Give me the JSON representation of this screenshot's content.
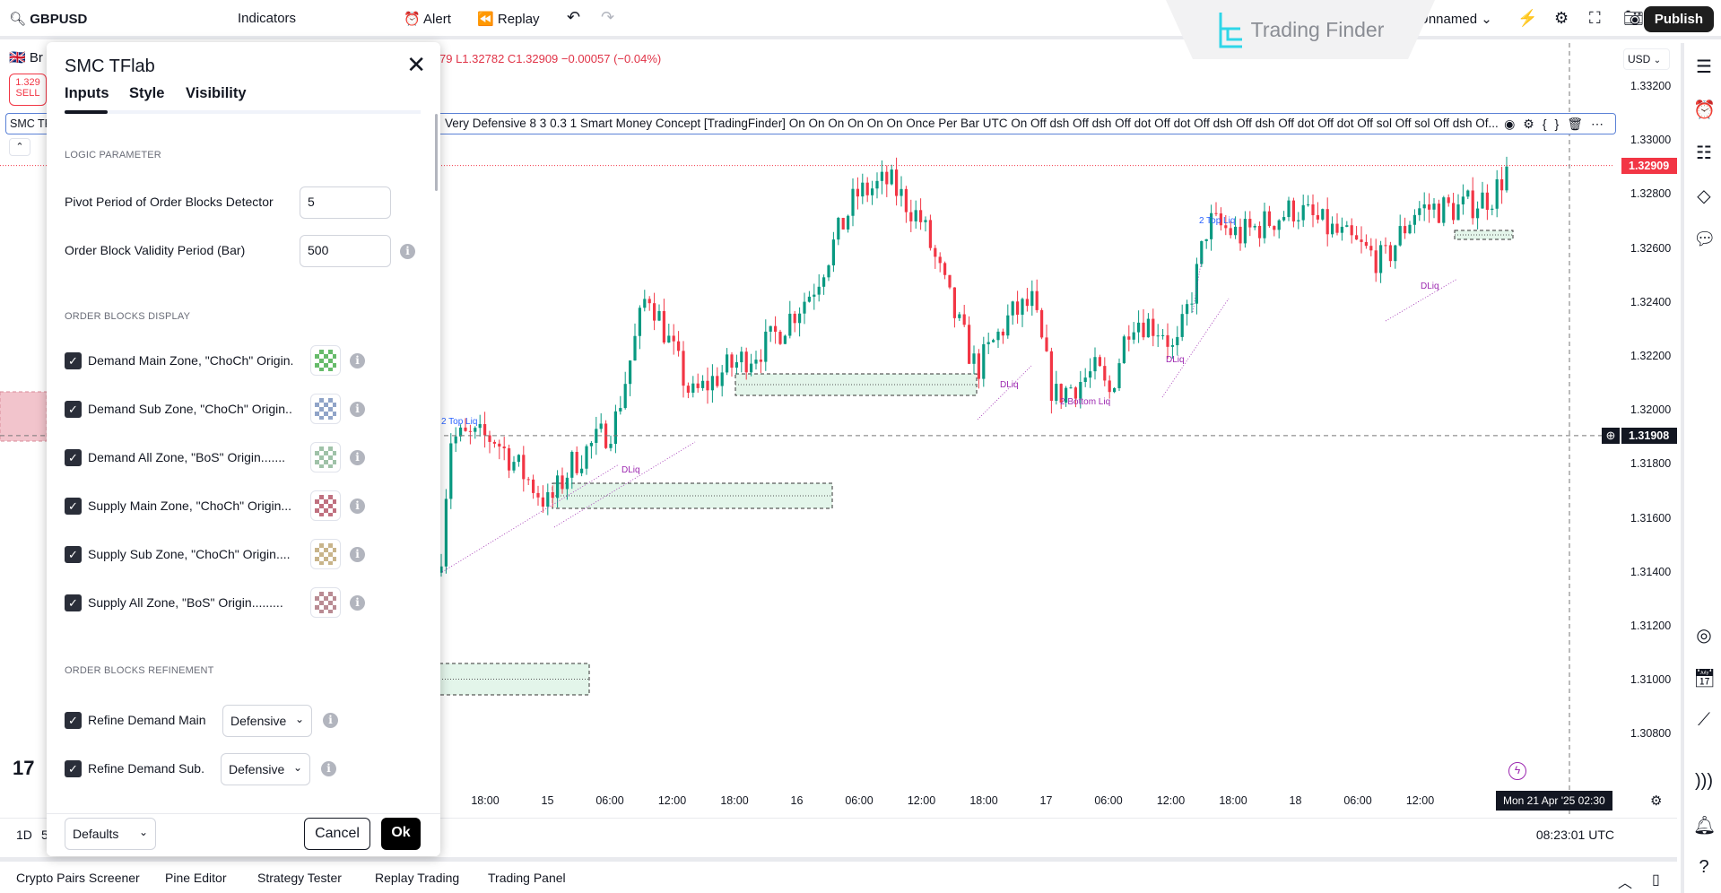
{
  "toolbar": {
    "symbol": "GBPUSD",
    "indicators": "Indicators",
    "alert": "Alert",
    "replay": "Replay",
    "layout_name": "Unnamed",
    "publish": "Publish"
  },
  "watermark": "Trading Finder",
  "chart": {
    "symbol_short": "Br",
    "sell_price": "1.329",
    "sell_label": "SELL",
    "legend_short": "SMC TF",
    "ohlc": "79 L1.32782 C1.32909 −0.00057 (−0.04%)",
    "legend_text": "Very Defensive 8 3 0.3 1 Smart Money Concept [TradingFinder] On On On On On On Once Per Bar UTC On Off dsh Off dsh Off dot Off dot Off dsh Off dsh Off dot Off dot Off sol Off sol Off dsh Of...",
    "currency": "USD",
    "price_ticks": [
      "1.33200",
      "1.33000",
      "1.32800",
      "1.32600",
      "1.32400",
      "1.32200",
      "1.32000",
      "1.31800",
      "1.31600",
      "1.31400",
      "1.31200",
      "1.31000",
      "1.30800"
    ],
    "last_price": "1.32909",
    "crosshair_price": "1.31908",
    "time_ticks": [
      "18:00",
      "15",
      "06:00",
      "12:00",
      "18:00",
      "16",
      "06:00",
      "12:00",
      "18:00",
      "17",
      "06:00",
      "12:00",
      "18:00",
      "18",
      "06:00",
      "12:00"
    ],
    "crosshair_time": "Mon 21 Apr '25  02:30",
    "labels": {
      "top_liq": "2 Top Liq",
      "dliq": "DLiq",
      "bottom_liq": "2 Bottom Liq"
    },
    "colors": {
      "up": "#089981",
      "down": "#f23645",
      "last_price_bg": "#f23645",
      "demand_zone": "#e3f5ea",
      "supply_zone": "#f2c4cc",
      "liq_label": "#9c27b0",
      "top_liq_label": "#2962ff"
    }
  },
  "status": {
    "interval": "1D",
    "interval2": "5",
    "clock": "08:23:01 UTC"
  },
  "bottom_tabs": [
    "Crypto Pairs Screener",
    "Pine Editor",
    "Strategy Tester",
    "Replay Trading",
    "Trading Panel"
  ],
  "dialog": {
    "title": "SMC TFlab",
    "tabs": [
      "Inputs",
      "Style",
      "Visibility"
    ],
    "sections": {
      "logic": "LOGIC PARAMETER",
      "display": "ORDER BLOCKS DISPLAY",
      "refinement": "ORDER BLOCKS REFINEMENT"
    },
    "inputs": [
      {
        "label": "Pivot Period of Order Blocks Detector",
        "value": "5"
      },
      {
        "label": "Order Block Validity Period (Bar)",
        "value": "500"
      }
    ],
    "zones": [
      {
        "label": "Demand Main Zone, \"ChoCh\" Origin.",
        "checked": true,
        "color": "#66bb6a"
      },
      {
        "label": "Demand Sub Zone, \"ChoCh\" Origin..",
        "checked": true,
        "color": "#90a4c8"
      },
      {
        "label": "Demand All Zone, \"BoS\" Origin.......",
        "checked": true,
        "color": "#9fc2a8"
      },
      {
        "label": "Supply Main Zone, \"ChoCh\" Origin...",
        "checked": true,
        "color": "#c0707f"
      },
      {
        "label": "Supply Sub Zone, \"ChoCh\" Origin....",
        "checked": true,
        "color": "#c8b48a"
      },
      {
        "label": "Supply All Zone, \"BoS\" Origin.........",
        "checked": true,
        "color": "#b98b93"
      }
    ],
    "refine": [
      {
        "label": "Refine Demand Main",
        "checked": true,
        "value": "Defensive"
      },
      {
        "label": "Refine Demand Sub.",
        "checked": true,
        "value": "Defensive"
      }
    ],
    "defaults": "Defaults",
    "cancel": "Cancel",
    "ok": "Ok"
  }
}
